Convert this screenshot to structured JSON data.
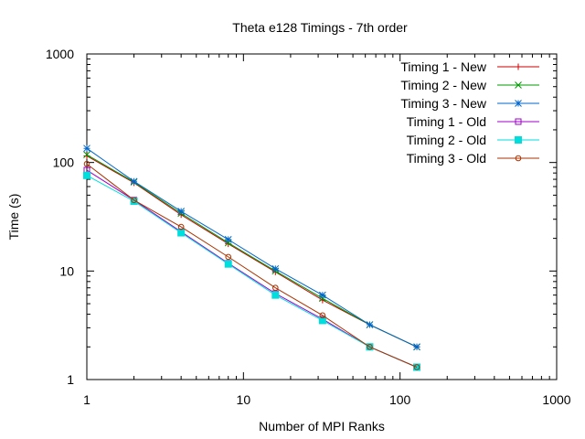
{
  "chart_data": {
    "type": "line",
    "title": "Theta e128 Timings - 7th order",
    "xlabel": "Number of MPI Ranks",
    "ylabel": "Time (s)",
    "x_scale": "log",
    "y_scale": "log",
    "xlim": [
      1,
      1000
    ],
    "ylim": [
      1,
      1000
    ],
    "grid": false,
    "legend_position": "top-right",
    "x_ticks": [
      1,
      10,
      100,
      1000
    ],
    "x_tick_labels": [
      "1",
      "10",
      "100",
      "1000"
    ],
    "y_ticks": [
      1,
      10,
      100,
      1000
    ],
    "y_tick_labels": [
      "1",
      "10",
      "100",
      "1000"
    ],
    "x": [
      1,
      2,
      4,
      8,
      16,
      32,
      64,
      128
    ],
    "series": [
      {
        "name": "Timing 1 - New",
        "color": "#cc0000",
        "marker": "plus",
        "values": [
          115,
          65,
          33,
          17.8,
          9.8,
          5.4,
          3.2,
          2.0
        ]
      },
      {
        "name": "Timing 2 - New",
        "color": "#009900",
        "marker": "cross",
        "values": [
          118,
          66,
          34,
          18.2,
          10.0,
          5.6,
          3.2,
          2.0
        ]
      },
      {
        "name": "Timing 3 - New",
        "color": "#0066cc",
        "marker": "star",
        "values": [
          135,
          67,
          35.5,
          19.5,
          10.5,
          6.0,
          3.2,
          2.0
        ]
      },
      {
        "name": "Timing 1 - Old",
        "color": "#a000c8",
        "marker": "square-open",
        "values": [
          85,
          45,
          23,
          11.8,
          6.2,
          3.6,
          2.0,
          1.3
        ]
      },
      {
        "name": "Timing 2 - Old",
        "color": "#00dddd",
        "marker": "square-filled",
        "values": [
          76,
          44,
          22.5,
          11.6,
          6.0,
          3.5,
          2.0,
          1.3
        ]
      },
      {
        "name": "Timing 3 - Old",
        "color": "#aa3300",
        "marker": "circle-open",
        "values": [
          97,
          45,
          25.5,
          13.5,
          7.0,
          3.9,
          2.0,
          1.3
        ]
      }
    ]
  }
}
